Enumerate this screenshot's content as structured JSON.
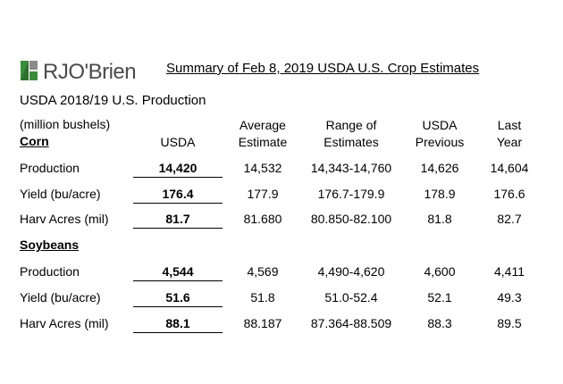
{
  "logo": {
    "text_r": "RJ",
    "text_o": "O",
    "text_rest": "'Brien",
    "color": "#4a4a4a",
    "mark_green": "#3c8c3c"
  },
  "title": "Summary of Feb 8, 2019 USDA U.S. Crop Estimates",
  "subtitle": "USDA 2018/19 U.S. Production",
  "units": "(million bushels)",
  "headers": {
    "usda": "USDA",
    "avg_1": "Average",
    "avg_2": "Estimate",
    "range_1": "Range of",
    "range_2": "Estimates",
    "prev_1": "USDA",
    "prev_2": "Previous",
    "last_1": "Last",
    "last_2": "Year"
  },
  "sections": [
    {
      "name": "Corn",
      "rows": [
        {
          "label": "Production",
          "usda": "14,420",
          "avg": "14,532",
          "range": "14,343-14,760",
          "prev": "14,626",
          "last": "14,604"
        },
        {
          "label": "Yield (bu/acre)",
          "usda": "176.4",
          "avg": "177.9",
          "range": "176.7-179.9",
          "prev": "178.9",
          "last": "176.6"
        },
        {
          "label": "Harv Acres (mil)",
          "usda": "81.7",
          "avg": "81.680",
          "range": "80.850-82.100",
          "prev": "81.8",
          "last": "82.7"
        }
      ]
    },
    {
      "name": "Soybeans",
      "rows": [
        {
          "label": "Production",
          "usda": "4,544",
          "avg": "4,569",
          "range": "4,490-4,620",
          "prev": "4,600",
          "last": "4,411"
        },
        {
          "label": "Yield (bu/acre)",
          "usda": "51.6",
          "avg": "51.8",
          "range": "51.0-52.4",
          "prev": "52.1",
          "last": "49.3"
        },
        {
          "label": "Harv Acres (mil)",
          "usda": "88.1",
          "avg": "88.187",
          "range": "87.364-88.509",
          "prev": "88.3",
          "last": "89.5"
        }
      ]
    }
  ]
}
